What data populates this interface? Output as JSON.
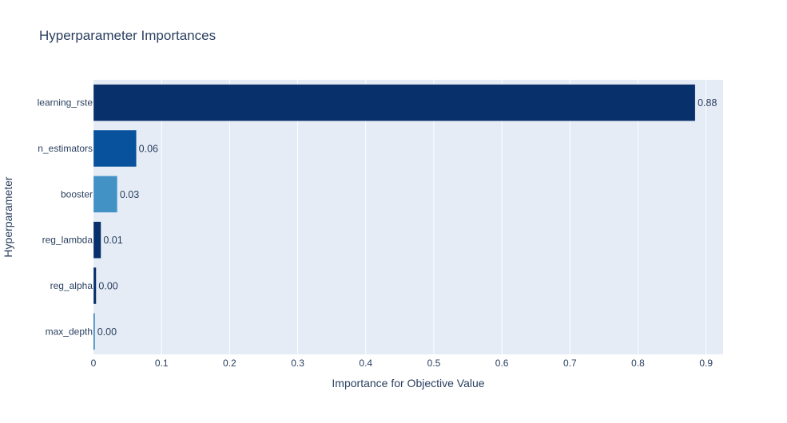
{
  "chart_data": {
    "type": "bar",
    "orientation": "horizontal",
    "title": "Hyperparameter Importances",
    "xlabel": "Importance for Objective Value",
    "ylabel": "Hyperparameter",
    "xlim": [
      0,
      0.925
    ],
    "xticks": [
      "0",
      "0.1",
      "0.2",
      "0.3",
      "0.4",
      "0.5",
      "0.6",
      "0.7",
      "0.8",
      "0.9"
    ],
    "xtick_values": [
      0,
      0.1,
      0.2,
      0.3,
      0.4,
      0.5,
      0.6,
      0.7,
      0.8,
      0.9
    ],
    "grid": true,
    "legend": "none",
    "plot_background": "#e5ecf6",
    "categories": [
      "learning_rste",
      "n_estimators",
      "booster",
      "reg_lambda",
      "reg_alpha",
      "max_depth"
    ],
    "values": [
      0.884,
      0.063,
      0.035,
      0.011,
      0.004,
      0.002
    ],
    "value_labels": [
      "0.88",
      "0.06",
      "0.03",
      "0.01",
      "0.00",
      "0.00"
    ],
    "colors": [
      "#08306b",
      "#08519c",
      "#4292c6",
      "#08306b",
      "#08306b",
      "#2171b5"
    ]
  }
}
